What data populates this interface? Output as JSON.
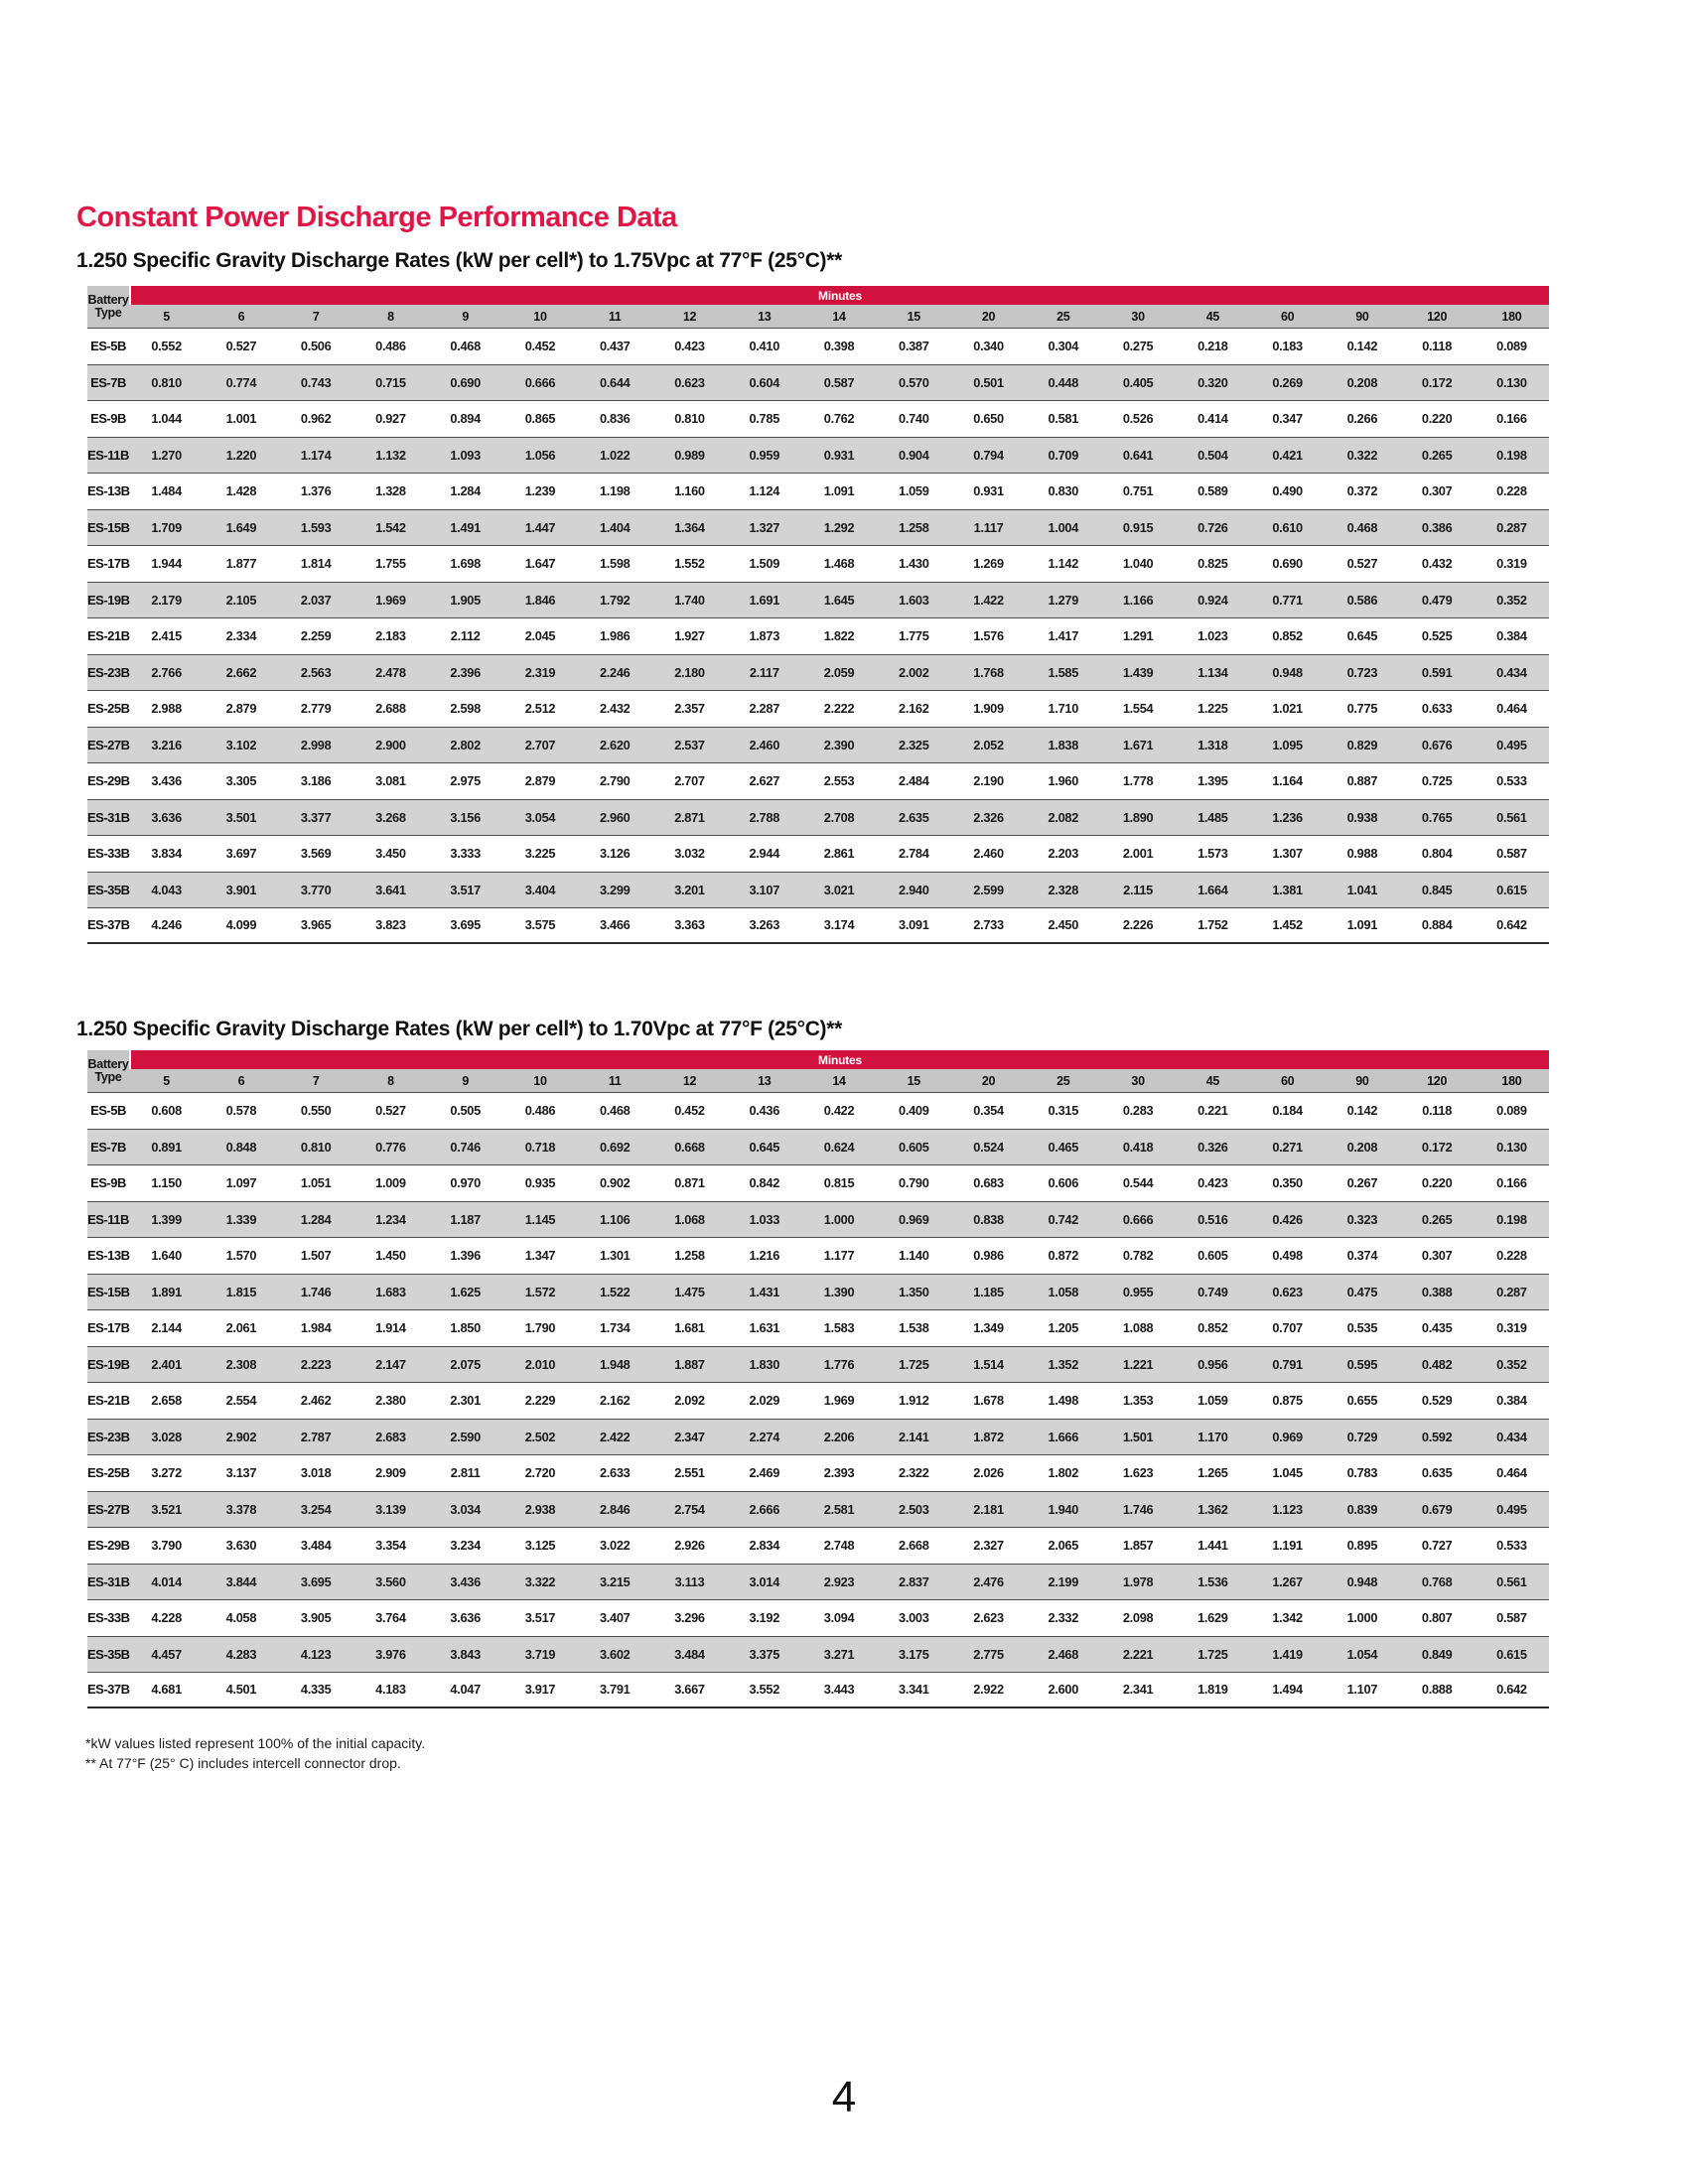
{
  "page": {
    "title": "Constant Power Discharge Performance Data",
    "footnote_1": "*kW values listed represent 100% of the initial capacity.",
    "footnote_2": "** At 77°F (25° C) includes intercell connector drop.",
    "page_number": "4",
    "accent_red": "#d2123e",
    "header_gray": "#c6c6c6",
    "row_alt_gray": "#d3d3d3"
  },
  "tables": [
    {
      "subtitle": "1.250 Specific Gravity Discharge Rates (kW per cell*) to 1.75Vpc at 77°F (25°C)**",
      "corner_line1": "Battery",
      "corner_line2": "Type",
      "band_label": "Minutes",
      "minutes": [
        "5",
        "6",
        "7",
        "8",
        "9",
        "10",
        "11",
        "12",
        "13",
        "14",
        "15",
        "20",
        "25",
        "30",
        "45",
        "60",
        "90",
        "120",
        "180"
      ],
      "rows": [
        {
          "type": "ES-5B",
          "values": [
            "0.552",
            "0.527",
            "0.506",
            "0.486",
            "0.468",
            "0.452",
            "0.437",
            "0.423",
            "0.410",
            "0.398",
            "0.387",
            "0.340",
            "0.304",
            "0.275",
            "0.218",
            "0.183",
            "0.142",
            "0.118",
            "0.089"
          ]
        },
        {
          "type": "ES-7B",
          "values": [
            "0.810",
            "0.774",
            "0.743",
            "0.715",
            "0.690",
            "0.666",
            "0.644",
            "0.623",
            "0.604",
            "0.587",
            "0.570",
            "0.501",
            "0.448",
            "0.405",
            "0.320",
            "0.269",
            "0.208",
            "0.172",
            "0.130"
          ]
        },
        {
          "type": "ES-9B",
          "values": [
            "1.044",
            "1.001",
            "0.962",
            "0.927",
            "0.894",
            "0.865",
            "0.836",
            "0.810",
            "0.785",
            "0.762",
            "0.740",
            "0.650",
            "0.581",
            "0.526",
            "0.414",
            "0.347",
            "0.266",
            "0.220",
            "0.166"
          ]
        },
        {
          "type": "ES-11B",
          "values": [
            "1.270",
            "1.220",
            "1.174",
            "1.132",
            "1.093",
            "1.056",
            "1.022",
            "0.989",
            "0.959",
            "0.931",
            "0.904",
            "0.794",
            "0.709",
            "0.641",
            "0.504",
            "0.421",
            "0.322",
            "0.265",
            "0.198"
          ]
        },
        {
          "type": "ES-13B",
          "values": [
            "1.484",
            "1.428",
            "1.376",
            "1.328",
            "1.284",
            "1.239",
            "1.198",
            "1.160",
            "1.124",
            "1.091",
            "1.059",
            "0.931",
            "0.830",
            "0.751",
            "0.589",
            "0.490",
            "0.372",
            "0.307",
            "0.228"
          ]
        },
        {
          "type": "ES-15B",
          "values": [
            "1.709",
            "1.649",
            "1.593",
            "1.542",
            "1.491",
            "1.447",
            "1.404",
            "1.364",
            "1.327",
            "1.292",
            "1.258",
            "1.117",
            "1.004",
            "0.915",
            "0.726",
            "0.610",
            "0.468",
            "0.386",
            "0.287"
          ]
        },
        {
          "type": "ES-17B",
          "values": [
            "1.944",
            "1.877",
            "1.814",
            "1.755",
            "1.698",
            "1.647",
            "1.598",
            "1.552",
            "1.509",
            "1.468",
            "1.430",
            "1.269",
            "1.142",
            "1.040",
            "0.825",
            "0.690",
            "0.527",
            "0.432",
            "0.319"
          ]
        },
        {
          "type": "ES-19B",
          "values": [
            "2.179",
            "2.105",
            "2.037",
            "1.969",
            "1.905",
            "1.846",
            "1.792",
            "1.740",
            "1.691",
            "1.645",
            "1.603",
            "1.422",
            "1.279",
            "1.166",
            "0.924",
            "0.771",
            "0.586",
            "0.479",
            "0.352"
          ]
        },
        {
          "type": "ES-21B",
          "values": [
            "2.415",
            "2.334",
            "2.259",
            "2.183",
            "2.112",
            "2.045",
            "1.986",
            "1.927",
            "1.873",
            "1.822",
            "1.775",
            "1.576",
            "1.417",
            "1.291",
            "1.023",
            "0.852",
            "0.645",
            "0.525",
            "0.384"
          ]
        },
        {
          "type": "ES-23B",
          "values": [
            "2.766",
            "2.662",
            "2.563",
            "2.478",
            "2.396",
            "2.319",
            "2.246",
            "2.180",
            "2.117",
            "2.059",
            "2.002",
            "1.768",
            "1.585",
            "1.439",
            "1.134",
            "0.948",
            "0.723",
            "0.591",
            "0.434"
          ]
        },
        {
          "type": "ES-25B",
          "values": [
            "2.988",
            "2.879",
            "2.779",
            "2.688",
            "2.598",
            "2.512",
            "2.432",
            "2.357",
            "2.287",
            "2.222",
            "2.162",
            "1.909",
            "1.710",
            "1.554",
            "1.225",
            "1.021",
            "0.775",
            "0.633",
            "0.464"
          ]
        },
        {
          "type": "ES-27B",
          "values": [
            "3.216",
            "3.102",
            "2.998",
            "2.900",
            "2.802",
            "2.707",
            "2.620",
            "2.537",
            "2.460",
            "2.390",
            "2.325",
            "2.052",
            "1.838",
            "1.671",
            "1.318",
            "1.095",
            "0.829",
            "0.676",
            "0.495"
          ]
        },
        {
          "type": "ES-29B",
          "values": [
            "3.436",
            "3.305",
            "3.186",
            "3.081",
            "2.975",
            "2.879",
            "2.790",
            "2.707",
            "2.627",
            "2.553",
            "2.484",
            "2.190",
            "1.960",
            "1.778",
            "1.395",
            "1.164",
            "0.887",
            "0.725",
            "0.533"
          ]
        },
        {
          "type": "ES-31B",
          "values": [
            "3.636",
            "3.501",
            "3.377",
            "3.268",
            "3.156",
            "3.054",
            "2.960",
            "2.871",
            "2.788",
            "2.708",
            "2.635",
            "2.326",
            "2.082",
            "1.890",
            "1.485",
            "1.236",
            "0.938",
            "0.765",
            "0.561"
          ]
        },
        {
          "type": "ES-33B",
          "values": [
            "3.834",
            "3.697",
            "3.569",
            "3.450",
            "3.333",
            "3.225",
            "3.126",
            "3.032",
            "2.944",
            "2.861",
            "2.784",
            "2.460",
            "2.203",
            "2.001",
            "1.573",
            "1.307",
            "0.988",
            "0.804",
            "0.587"
          ]
        },
        {
          "type": "ES-35B",
          "values": [
            "4.043",
            "3.901",
            "3.770",
            "3.641",
            "3.517",
            "3.404",
            "3.299",
            "3.201",
            "3.107",
            "3.021",
            "2.940",
            "2.599",
            "2.328",
            "2.115",
            "1.664",
            "1.381",
            "1.041",
            "0.845",
            "0.615"
          ]
        },
        {
          "type": "ES-37B",
          "values": [
            "4.246",
            "4.099",
            "3.965",
            "3.823",
            "3.695",
            "3.575",
            "3.466",
            "3.363",
            "3.263",
            "3.174",
            "3.091",
            "2.733",
            "2.450",
            "2.226",
            "1.752",
            "1.452",
            "1.091",
            "0.884",
            "0.642"
          ]
        }
      ]
    },
    {
      "subtitle": "1.250 Specific Gravity Discharge Rates (kW per cell*) to 1.70Vpc at 77°F (25°C)**",
      "corner_line1": "Battery",
      "corner_line2": "Type",
      "band_label": "Minutes",
      "minutes": [
        "5",
        "6",
        "7",
        "8",
        "9",
        "10",
        "11",
        "12",
        "13",
        "14",
        "15",
        "20",
        "25",
        "30",
        "45",
        "60",
        "90",
        "120",
        "180"
      ],
      "rows": [
        {
          "type": "ES-5B",
          "values": [
            "0.608",
            "0.578",
            "0.550",
            "0.527",
            "0.505",
            "0.486",
            "0.468",
            "0.452",
            "0.436",
            "0.422",
            "0.409",
            "0.354",
            "0.315",
            "0.283",
            "0.221",
            "0.184",
            "0.142",
            "0.118",
            "0.089"
          ]
        },
        {
          "type": "ES-7B",
          "values": [
            "0.891",
            "0.848",
            "0.810",
            "0.776",
            "0.746",
            "0.718",
            "0.692",
            "0.668",
            "0.645",
            "0.624",
            "0.605",
            "0.524",
            "0.465",
            "0.418",
            "0.326",
            "0.271",
            "0.208",
            "0.172",
            "0.130"
          ]
        },
        {
          "type": "ES-9B",
          "values": [
            "1.150",
            "1.097",
            "1.051",
            "1.009",
            "0.970",
            "0.935",
            "0.902",
            "0.871",
            "0.842",
            "0.815",
            "0.790",
            "0.683",
            "0.606",
            "0.544",
            "0.423",
            "0.350",
            "0.267",
            "0.220",
            "0.166"
          ]
        },
        {
          "type": "ES-11B",
          "values": [
            "1.399",
            "1.339",
            "1.284",
            "1.234",
            "1.187",
            "1.145",
            "1.106",
            "1.068",
            "1.033",
            "1.000",
            "0.969",
            "0.838",
            "0.742",
            "0.666",
            "0.516",
            "0.426",
            "0.323",
            "0.265",
            "0.198"
          ]
        },
        {
          "type": "ES-13B",
          "values": [
            "1.640",
            "1.570",
            "1.507",
            "1.450",
            "1.396",
            "1.347",
            "1.301",
            "1.258",
            "1.216",
            "1.177",
            "1.140",
            "0.986",
            "0.872",
            "0.782",
            "0.605",
            "0.498",
            "0.374",
            "0.307",
            "0.228"
          ]
        },
        {
          "type": "ES-15B",
          "values": [
            "1.891",
            "1.815",
            "1.746",
            "1.683",
            "1.625",
            "1.572",
            "1.522",
            "1.475",
            "1.431",
            "1.390",
            "1.350",
            "1.185",
            "1.058",
            "0.955",
            "0.749",
            "0.623",
            "0.475",
            "0.388",
            "0.287"
          ]
        },
        {
          "type": "ES-17B",
          "values": [
            "2.144",
            "2.061",
            "1.984",
            "1.914",
            "1.850",
            "1.790",
            "1.734",
            "1.681",
            "1.631",
            "1.583",
            "1.538",
            "1.349",
            "1.205",
            "1.088",
            "0.852",
            "0.707",
            "0.535",
            "0.435",
            "0.319"
          ]
        },
        {
          "type": "ES-19B",
          "values": [
            "2.401",
            "2.308",
            "2.223",
            "2.147",
            "2.075",
            "2.010",
            "1.948",
            "1.887",
            "1.830",
            "1.776",
            "1.725",
            "1.514",
            "1.352",
            "1.221",
            "0.956",
            "0.791",
            "0.595",
            "0.482",
            "0.352"
          ]
        },
        {
          "type": "ES-21B",
          "values": [
            "2.658",
            "2.554",
            "2.462",
            "2.380",
            "2.301",
            "2.229",
            "2.162",
            "2.092",
            "2.029",
            "1.969",
            "1.912",
            "1.678",
            "1.498",
            "1.353",
            "1.059",
            "0.875",
            "0.655",
            "0.529",
            "0.384"
          ]
        },
        {
          "type": "ES-23B",
          "values": [
            "3.028",
            "2.902",
            "2.787",
            "2.683",
            "2.590",
            "2.502",
            "2.422",
            "2.347",
            "2.274",
            "2.206",
            "2.141",
            "1.872",
            "1.666",
            "1.501",
            "1.170",
            "0.969",
            "0.729",
            "0.592",
            "0.434"
          ]
        },
        {
          "type": "ES-25B",
          "values": [
            "3.272",
            "3.137",
            "3.018",
            "2.909",
            "2.811",
            "2.720",
            "2.633",
            "2.551",
            "2.469",
            "2.393",
            "2.322",
            "2.026",
            "1.802",
            "1.623",
            "1.265",
            "1.045",
            "0.783",
            "0.635",
            "0.464"
          ]
        },
        {
          "type": "ES-27B",
          "values": [
            "3.521",
            "3.378",
            "3.254",
            "3.139",
            "3.034",
            "2.938",
            "2.846",
            "2.754",
            "2.666",
            "2.581",
            "2.503",
            "2.181",
            "1.940",
            "1.746",
            "1.362",
            "1.123",
            "0.839",
            "0.679",
            "0.495"
          ]
        },
        {
          "type": "ES-29B",
          "values": [
            "3.790",
            "3.630",
            "3.484",
            "3.354",
            "3.234",
            "3.125",
            "3.022",
            "2.926",
            "2.834",
            "2.748",
            "2.668",
            "2.327",
            "2.065",
            "1.857",
            "1.441",
            "1.191",
            "0.895",
            "0.727",
            "0.533"
          ]
        },
        {
          "type": "ES-31B",
          "values": [
            "4.014",
            "3.844",
            "3.695",
            "3.560",
            "3.436",
            "3.322",
            "3.215",
            "3.113",
            "3.014",
            "2.923",
            "2.837",
            "2.476",
            "2.199",
            "1.978",
            "1.536",
            "1.267",
            "0.948",
            "0.768",
            "0.561"
          ]
        },
        {
          "type": "ES-33B",
          "values": [
            "4.228",
            "4.058",
            "3.905",
            "3.764",
            "3.636",
            "3.517",
            "3.407",
            "3.296",
            "3.192",
            "3.094",
            "3.003",
            "2.623",
            "2.332",
            "2.098",
            "1.629",
            "1.342",
            "1.000",
            "0.807",
            "0.587"
          ]
        },
        {
          "type": "ES-35B",
          "values": [
            "4.457",
            "4.283",
            "4.123",
            "3.976",
            "3.843",
            "3.719",
            "3.602",
            "3.484",
            "3.375",
            "3.271",
            "3.175",
            "2.775",
            "2.468",
            "2.221",
            "1.725",
            "1.419",
            "1.054",
            "0.849",
            "0.615"
          ]
        },
        {
          "type": "ES-37B",
          "values": [
            "4.681",
            "4.501",
            "4.335",
            "4.183",
            "4.047",
            "3.917",
            "3.791",
            "3.667",
            "3.552",
            "3.443",
            "3.341",
            "2.922",
            "2.600",
            "2.341",
            "1.819",
            "1.494",
            "1.107",
            "0.888",
            "0.642"
          ]
        }
      ]
    }
  ]
}
